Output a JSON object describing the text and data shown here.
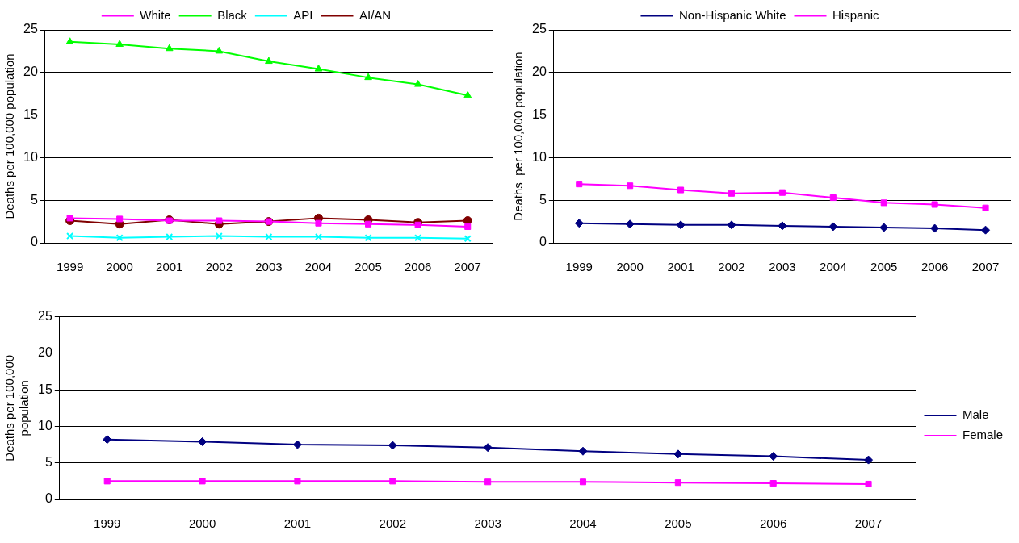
{
  "chart_data": [
    {
      "type": "line",
      "ylabel": "Deaths per 100,000 population",
      "categories": [
        "1999",
        "2000",
        "2001",
        "2002",
        "2003",
        "2004",
        "2005",
        "2006",
        "2007"
      ],
      "series": [
        {
          "name": "White",
          "color": "#ff00ff",
          "marker": "square",
          "values": [
            2.9,
            2.8,
            2.6,
            2.6,
            2.5,
            2.3,
            2.2,
            2.1,
            1.9
          ]
        },
        {
          "name": "Black",
          "color": "#00ff00",
          "marker": "triangle",
          "values": [
            23.6,
            23.3,
            22.8,
            22.5,
            21.3,
            20.4,
            19.4,
            18.6,
            17.3
          ]
        },
        {
          "name": "API",
          "color": "#00ffff",
          "marker": "cross",
          "values": [
            0.8,
            0.6,
            0.7,
            0.8,
            0.7,
            0.7,
            0.6,
            0.6,
            0.5
          ]
        },
        {
          "name": "AI/AN",
          "color": "#800000",
          "marker": "circle",
          "values": [
            2.6,
            2.2,
            2.7,
            2.2,
            2.5,
            2.9,
            2.7,
            2.4,
            2.6
          ]
        }
      ],
      "ylim": [
        0,
        25
      ],
      "yticks": [
        0,
        5,
        10,
        15,
        20,
        25
      ],
      "grid": "y",
      "legend": "top",
      "line_style": "solid"
    },
    {
      "type": "line",
      "ylabel": "Deaths  per 100,000 population",
      "categories": [
        "1999",
        "2000",
        "2001",
        "2002",
        "2003",
        "2004",
        "2005",
        "2006",
        "2007"
      ],
      "series": [
        {
          "name": "Non-Hispanic White",
          "color": "#000080",
          "marker": "diamond",
          "values": [
            2.3,
            2.2,
            2.1,
            2.1,
            2.0,
            1.9,
            1.8,
            1.7,
            1.5
          ]
        },
        {
          "name": "Hispanic",
          "color": "#ff00ff",
          "marker": "square",
          "values": [
            6.9,
            6.7,
            6.2,
            5.8,
            5.9,
            5.3,
            4.7,
            4.5,
            4.1
          ]
        }
      ],
      "ylim": [
        0,
        25
      ],
      "yticks": [
        0,
        5,
        10,
        15,
        20,
        25
      ],
      "grid": "y",
      "legend": "top",
      "line_style": "solid"
    },
    {
      "type": "line",
      "ylabel": "Deaths per 100,000\npopulation",
      "categories": [
        "1999",
        "2000",
        "2001",
        "2002",
        "2003",
        "2004",
        "2005",
        "2006",
        "2007"
      ],
      "series": [
        {
          "name": "Male",
          "color": "#000080",
          "marker": "diamond",
          "values": [
            8.2,
            7.9,
            7.5,
            7.4,
            7.1,
            6.6,
            6.2,
            5.9,
            5.4
          ]
        },
        {
          "name": "Female",
          "color": "#ff00ff",
          "marker": "square",
          "values": [
            2.5,
            2.5,
            2.5,
            2.5,
            2.4,
            2.4,
            2.3,
            2.2,
            2.1
          ]
        }
      ],
      "ylim": [
        0,
        25
      ],
      "yticks": [
        0,
        5,
        10,
        15,
        20,
        25
      ],
      "grid": "y",
      "legend": "right",
      "line_style": "solid"
    }
  ]
}
